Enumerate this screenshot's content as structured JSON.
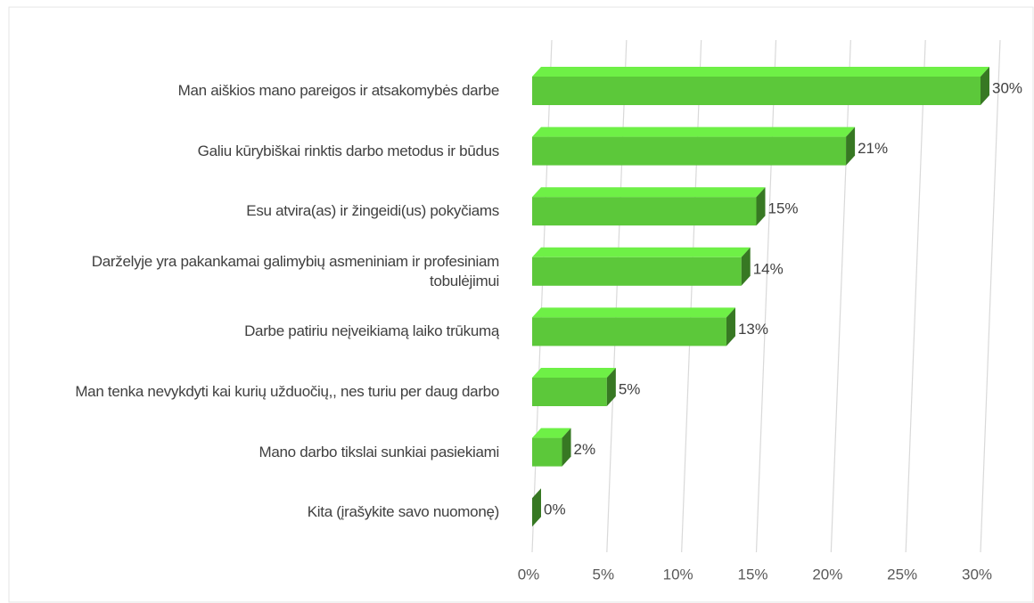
{
  "chart_data": {
    "type": "bar",
    "orientation": "horizontal",
    "categories": [
      "Man aiškios mano pareigos ir atsakomybės darbe",
      "Galiu kūrybiškai rinktis darbo metodus ir būdus",
      "Esu atvira(as) ir žingeidi(us) pokyčiams",
      "Darželyje yra pakankamai galimybių asmeniniam ir profesiniam tobulėjimui",
      "Darbe patiriu neįveikiamą laiko trūkumą",
      "Man tenka nevykdyti kai kurių užduočių,, nes turiu per daug darbo",
      "Mano darbo tikslai sunkiai pasiekiami",
      "Kita (įrašykite savo nuomonę)"
    ],
    "values": [
      30,
      21,
      15,
      14,
      13,
      5,
      2,
      0
    ],
    "value_labels": [
      "30%",
      "21%",
      "15%",
      "14%",
      "13%",
      "5%",
      "2%",
      "0%"
    ],
    "color": "#5cc83a",
    "xlim": [
      0,
      30
    ],
    "xticks": [
      {
        "value": 0,
        "label": "0%"
      },
      {
        "value": 5,
        "label": "5%"
      },
      {
        "value": 10,
        "label": "10%"
      },
      {
        "value": 15,
        "label": "15%"
      },
      {
        "value": 20,
        "label": "20%"
      },
      {
        "value": 25,
        "label": "25%"
      },
      {
        "value": 30,
        "label": "30%"
      }
    ],
    "grid": true
  }
}
